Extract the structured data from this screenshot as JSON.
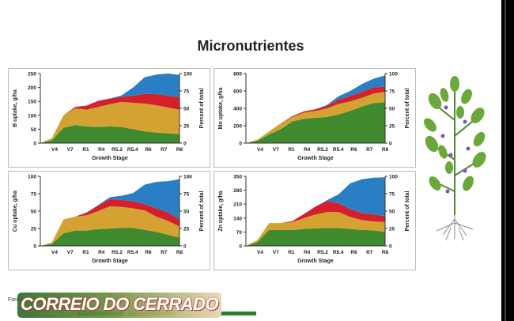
{
  "page": {
    "title": "Micronutrientes",
    "source_label": "Fonte:",
    "watermark": "CORREIO DO CERRADO"
  },
  "colors": {
    "green": "#3f8a2e",
    "gold": "#d4a233",
    "red": "#d4202a",
    "blue": "#2a7fc4",
    "footer_green": "#2f7d32",
    "footer_gold": "#c8a32e"
  },
  "chart_data": [
    {
      "type": "area",
      "ylabel": "B uptake, g/ha",
      "y2label": "Percent of total",
      "xlabel": "Growth Stage",
      "categories": [
        "V4",
        "V7",
        "R1",
        "R4",
        "R5.2",
        "R5.4",
        "R6",
        "R7",
        "R8"
      ],
      "x": [
        0,
        1,
        2,
        3,
        4,
        5,
        6,
        7,
        8,
        9,
        10,
        11,
        12
      ],
      "ylim": [
        0,
        250
      ],
      "yticks": [
        0,
        50,
        100,
        150,
        200,
        250
      ],
      "y2lim": [
        0,
        100
      ],
      "y2ticks": [
        0,
        25,
        50,
        75,
        100
      ],
      "series": [
        {
          "color": "#3f8a2e",
          "values": [
            0,
            10,
            55,
            65,
            60,
            58,
            60,
            58,
            50,
            42,
            38,
            35,
            32
          ]
        },
        {
          "color": "#d4a233",
          "values": [
            0,
            8,
            45,
            60,
            60,
            72,
            80,
            90,
            95,
            100,
            98,
            93,
            88
          ]
        },
        {
          "color": "#d4202a",
          "values": [
            0,
            0,
            0,
            5,
            15,
            22,
            20,
            18,
            25,
            35,
            40,
            42,
            45
          ]
        },
        {
          "color": "#2a7fc4",
          "values": [
            0,
            0,
            0,
            0,
            0,
            0,
            0,
            5,
            30,
            60,
            70,
            80,
            80
          ]
        }
      ]
    },
    {
      "type": "area",
      "ylabel": "Mn uptake, g/ha",
      "y2label": "Percent of total",
      "xlabel": "Growth Stage",
      "categories": [
        "V4",
        "V7",
        "R1",
        "R4",
        "R5.2",
        "R5.4",
        "R6",
        "R7",
        "R8"
      ],
      "x": [
        0,
        1,
        2,
        3,
        4,
        5,
        6,
        7,
        8,
        9,
        10,
        11,
        12
      ],
      "ylim": [
        0,
        800
      ],
      "yticks": [
        0,
        200,
        400,
        600,
        800
      ],
      "y2lim": [
        0,
        100
      ],
      "y2ticks": [
        0,
        25,
        50,
        75,
        100
      ],
      "series": [
        {
          "color": "#3f8a2e",
          "values": [
            0,
            30,
            100,
            160,
            250,
            280,
            290,
            300,
            330,
            370,
            420,
            460,
            470
          ]
        },
        {
          "color": "#d4a233",
          "values": [
            0,
            10,
            35,
            60,
            50,
            70,
            80,
            100,
            120,
            110,
            100,
            110,
            120
          ]
        },
        {
          "color": "#d4202a",
          "values": [
            0,
            0,
            0,
            5,
            10,
            15,
            20,
            30,
            50,
            60,
            70,
            70,
            60
          ]
        },
        {
          "color": "#2a7fc4",
          "values": [
            0,
            0,
            0,
            0,
            0,
            0,
            0,
            10,
            40,
            60,
            90,
            100,
            130
          ]
        }
      ]
    },
    {
      "type": "area",
      "ylabel": "Cu uptake, g/ha",
      "y2label": "Percent of total",
      "xlabel": "Growth Stage",
      "categories": [
        "V4",
        "V7",
        "R1",
        "R4",
        "R5.2",
        "R5.4",
        "R6",
        "R7",
        "R8"
      ],
      "x": [
        0,
        1,
        2,
        3,
        4,
        5,
        6,
        7,
        8,
        9,
        10,
        11,
        12
      ],
      "ylim": [
        0,
        100
      ],
      "yticks": [
        0,
        25,
        50,
        75,
        100
      ],
      "y2lim": [
        0,
        100
      ],
      "y2ticks": [
        0,
        25,
        50,
        75,
        100
      ],
      "series": [
        {
          "color": "#3f8a2e",
          "values": [
            0,
            3,
            18,
            22,
            22,
            24,
            25,
            26,
            26,
            23,
            20,
            16,
            12
          ]
        },
        {
          "color": "#d4a233",
          "values": [
            0,
            2,
            20,
            20,
            22,
            26,
            32,
            30,
            28,
            28,
            22,
            20,
            16
          ]
        },
        {
          "color": "#d4202a",
          "values": [
            0,
            0,
            0,
            0,
            4,
            8,
            10,
            10,
            10,
            9,
            12,
            12,
            10
          ]
        },
        {
          "color": "#2a7fc4",
          "values": [
            0,
            0,
            0,
            0,
            0,
            1,
            3,
            6,
            12,
            28,
            38,
            45,
            58
          ]
        }
      ]
    },
    {
      "type": "area",
      "ylabel": "Zn uptake, g/ha",
      "y2label": "Percent of total",
      "xlabel": "Growth Stage",
      "categories": [
        "V4",
        "V7",
        "R1",
        "R4",
        "R5.2",
        "R5.4",
        "R6",
        "R7",
        "R8"
      ],
      "x": [
        0,
        1,
        2,
        3,
        4,
        5,
        6,
        7,
        8,
        9,
        10,
        11,
        12
      ],
      "ylim": [
        0,
        350
      ],
      "yticks": [
        0,
        70,
        140,
        210,
        280,
        350
      ],
      "y2lim": [
        0,
        100
      ],
      "y2ticks": [
        0,
        25,
        50,
        75,
        100
      ],
      "series": [
        {
          "color": "#3f8a2e",
          "values": [
            0,
            20,
            80,
            80,
            80,
            85,
            88,
            90,
            90,
            85,
            80,
            78,
            70
          ]
        },
        {
          "color": "#d4a233",
          "values": [
            0,
            10,
            35,
            35,
            40,
            55,
            70,
            80,
            80,
            60,
            50,
            45,
            50
          ]
        },
        {
          "color": "#d4202a",
          "values": [
            0,
            0,
            0,
            0,
            5,
            20,
            40,
            55,
            45,
            40,
            35,
            35,
            30
          ]
        },
        {
          "color": "#2a7fc4",
          "values": [
            0,
            0,
            0,
            0,
            0,
            0,
            0,
            5,
            45,
            130,
            170,
            185,
            195
          ]
        }
      ]
    }
  ]
}
